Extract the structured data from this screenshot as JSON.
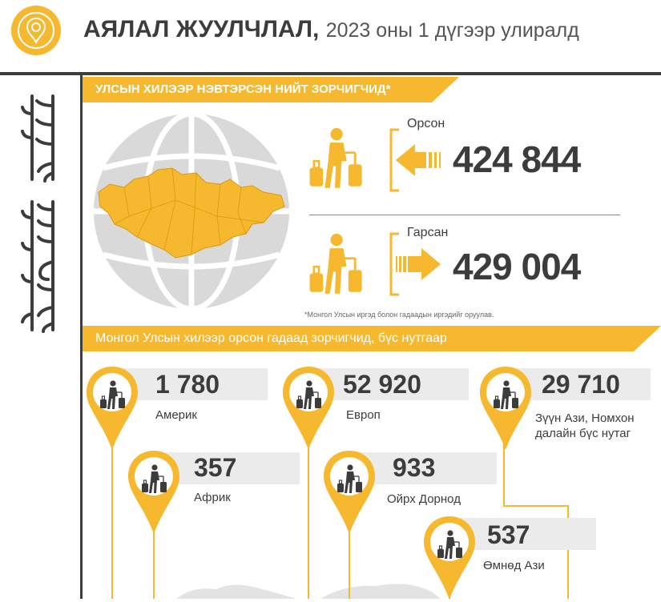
{
  "header": {
    "title": "АЯЛАЛ ЖУУЛЧЛАЛ,",
    "subtitle": "2023 оны 1 дүгээр улиралд",
    "logo_icon": "travel-pin-icon",
    "script_icon": "mongolian-script-heading"
  },
  "border": {
    "title": "УЛСЫН ХИЛЭЭР НЭВТЭРСЭН НИЙТ ЗОРЧИГЧИД*",
    "arrived_label": "Орсон",
    "arrived_value": "424 844",
    "departed_label": "Гарсан",
    "departed_value": "429 004",
    "note": "*Монгол Улсын иргэд болон гадаадын иргэдийг оруулав."
  },
  "regions": {
    "title": "Монгол Улсын хилээр орсон гадаад зорчигчид, бүс нутгаар",
    "items": [
      {
        "name": "Америк",
        "value": "1 780"
      },
      {
        "name": "Европ",
        "value": "52 920"
      },
      {
        "name": "Зүүн Ази, Номхон далайн бүс нутаг",
        "value": "29 710"
      },
      {
        "name": "Африк",
        "value": "357"
      },
      {
        "name": "Ойрх Дорнод",
        "value": "933"
      },
      {
        "name": "Өмнөд Ази",
        "value": "537"
      }
    ]
  },
  "colors": {
    "accent": "#f5b82e",
    "dark": "#3c3c3c",
    "panel": "#ebebeb"
  }
}
